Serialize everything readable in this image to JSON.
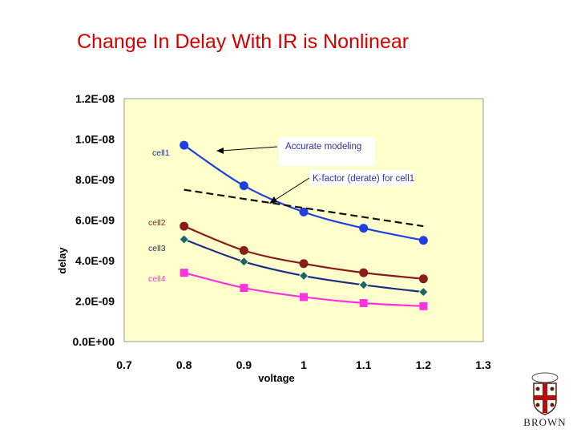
{
  "slide_title": "Change In Delay With IR is Nonlinear",
  "logo_text": "BROWN",
  "colors": {
    "plot_bg": "#ffffcc",
    "cell1": "#1f3fe0",
    "cell2": "#8b1a1a",
    "cell3": "#1a2f80",
    "cell3_marker": "#1a6a5a",
    "cell4": "#ff33dd",
    "kfactor": "#111111",
    "title": "#d40000"
  },
  "chart_data": {
    "type": "line",
    "title": "",
    "xlabel": "voltage",
    "ylabel": "delay",
    "xlim": [
      0.7,
      1.3
    ],
    "ylim": [
      0,
      1.2e-08
    ],
    "x_ticks": [
      0.7,
      0.8,
      0.9,
      1.0,
      1.1,
      1.2,
      1.3
    ],
    "x_tick_labels": [
      "0.7",
      "0.8",
      "0.9",
      "1",
      "1.1",
      "1.2",
      "1.3"
    ],
    "y_ticks": [
      0,
      2e-09,
      4e-09,
      6e-09,
      8e-09,
      1e-08,
      1.2e-08
    ],
    "y_tick_labels": [
      "0.0E+00",
      "2.0E-09",
      "4.0E-09",
      "6.0E-09",
      "8.0E-09",
      "1.0E-08",
      "1.2E-08"
    ],
    "grid": false,
    "series": [
      {
        "name": "cell1",
        "marker": "circle",
        "x": [
          0.8,
          0.9,
          1.0,
          1.1,
          1.2
        ],
        "y": [
          9.7e-09,
          7.7e-09,
          6.4e-09,
          5.6e-09,
          5e-09
        ]
      },
      {
        "name": "cell2",
        "marker": "circle",
        "x": [
          0.8,
          0.9,
          1.0,
          1.1,
          1.2
        ],
        "y": [
          5.7e-09,
          4.5e-09,
          3.85e-09,
          3.4e-09,
          3.1e-09
        ]
      },
      {
        "name": "cell3",
        "marker": "diamond",
        "x": [
          0.8,
          0.9,
          1.0,
          1.1,
          1.2
        ],
        "y": [
          5.05e-09,
          3.95e-09,
          3.25e-09,
          2.8e-09,
          2.45e-09
        ]
      },
      {
        "name": "cell4",
        "marker": "square",
        "x": [
          0.8,
          0.9,
          1.0,
          1.1,
          1.2
        ],
        "y": [
          3.4e-09,
          2.65e-09,
          2.2e-09,
          1.9e-09,
          1.75e-09
        ]
      }
    ],
    "kfactor_line": {
      "x": [
        0.8,
        1.2
      ],
      "y": [
        7.5e-09,
        5.7e-09
      ]
    },
    "annotations": [
      {
        "text": "Accurate modeling"
      },
      {
        "text": "K-factor (derate) for cell1"
      }
    ]
  }
}
